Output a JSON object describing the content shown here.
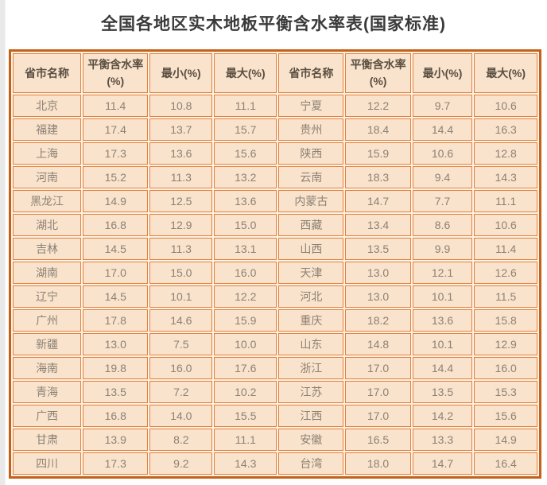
{
  "page_title": "全国各地区实木地板平衡含水率表(国家标准)",
  "colors": {
    "outer_border": "#c4621c",
    "cell_border": "#e0813d",
    "cell_background": "#fae3cc",
    "table_gap_background": "#fdf2e4",
    "body_text": "#8b8175",
    "header_text": "#5a4f42",
    "title_text": "#3a3a3a",
    "page_background": "#ffffff"
  },
  "chart_data": {
    "type": "table",
    "title": "全国各地区实木地板平衡含水率表(国家标准)",
    "columns": [
      "省市名称",
      "平衡含水率(%)",
      "最小(%)",
      "最大(%)",
      "省市名称",
      "平衡含水率(%)",
      "最小(%)",
      "最大(%)"
    ],
    "rows": [
      [
        "北京",
        "11.4",
        "10.8",
        "11.1",
        "宁夏",
        "12.2",
        "9.7",
        "10.6"
      ],
      [
        "福建",
        "17.4",
        "13.7",
        "15.7",
        "贵州",
        "18.4",
        "14.4",
        "16.3"
      ],
      [
        "上海",
        "17.3",
        "13.6",
        "15.6",
        "陕西",
        "15.9",
        "10.6",
        "12.8"
      ],
      [
        "河南",
        "15.2",
        "11.3",
        "13.2",
        "云南",
        "18.3",
        "9.4",
        "14.3"
      ],
      [
        "黑龙江",
        "14.9",
        "12.5",
        "13.6",
        "内蒙古",
        "14.7",
        "7.7",
        "11.1"
      ],
      [
        "湖北",
        "16.8",
        "12.9",
        "15.0",
        "西藏",
        "13.4",
        "8.6",
        "10.6"
      ],
      [
        "吉林",
        "14.5",
        "11.3",
        "13.1",
        "山西",
        "13.5",
        "9.9",
        "11.4"
      ],
      [
        "湖南",
        "17.0",
        "15.0",
        "16.0",
        "天津",
        "13.0",
        "12.1",
        "12.6"
      ],
      [
        "辽宁",
        "14.5",
        "10.1",
        "12.2",
        "河北",
        "13.0",
        "10.1",
        "11.5"
      ],
      [
        "广州",
        "17.8",
        "14.6",
        "15.9",
        "重庆",
        "18.2",
        "13.6",
        "15.8"
      ],
      [
        "新疆",
        "13.0",
        "7.5",
        "10.0",
        "山东",
        "14.8",
        "10.1",
        "12.9"
      ],
      [
        "海南",
        "19.8",
        "16.0",
        "17.6",
        "浙江",
        "17.0",
        "14.4",
        "16.0"
      ],
      [
        "青海",
        "13.5",
        "7.2",
        "10.2",
        "江苏",
        "17.0",
        "13.5",
        "15.3"
      ],
      [
        "广西",
        "16.8",
        "14.0",
        "15.5",
        "江西",
        "17.0",
        "14.2",
        "15.6"
      ],
      [
        "甘肃",
        "13.9",
        "8.2",
        "11.1",
        "安徽",
        "16.5",
        "13.3",
        "14.9"
      ],
      [
        "四川",
        "17.3",
        "9.2",
        "14.3",
        "台湾",
        "18.0",
        "14.7",
        "16.4"
      ]
    ]
  }
}
